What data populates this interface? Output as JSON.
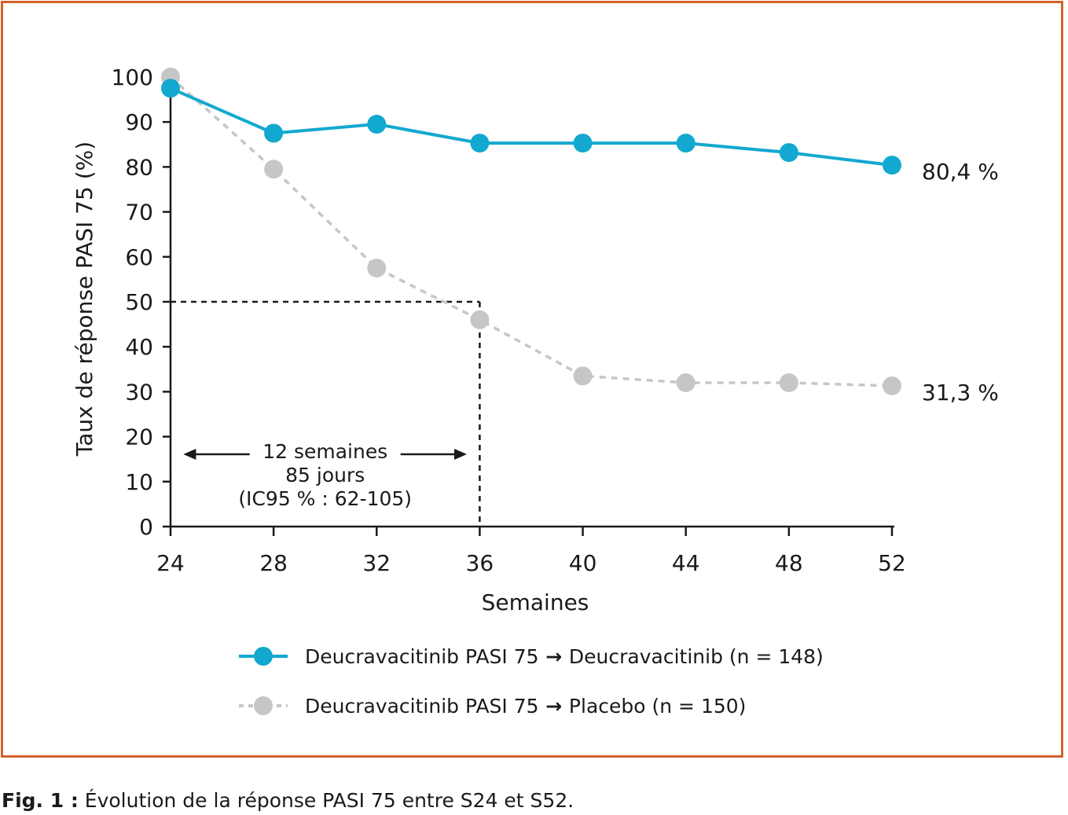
{
  "chart_data": {
    "type": "line",
    "xlabel": "Semaines",
    "ylabel": "Taux de réponse PASI 75 (%)",
    "x": [
      24,
      28,
      32,
      36,
      40,
      44,
      48,
      52
    ],
    "xticks": [
      "24",
      "28",
      "32",
      "36",
      "40",
      "44",
      "48",
      "52"
    ],
    "yticks": [
      "0",
      "10",
      "20",
      "30",
      "40",
      "50",
      "60",
      "70",
      "80",
      "90",
      "100"
    ],
    "xlim": [
      24,
      52
    ],
    "ylim": [
      0,
      100
    ],
    "grid": false,
    "legend_position": "bottom",
    "series": [
      {
        "name": "Deucravacitinib PASI 75 → Deucravacitinib (n = 148)",
        "legend_prefix": "Deucravacitinib PASI 75",
        "legend_suffix": "Deucravacitinib (n = 148)",
        "color": "#12a8cf",
        "line_style": "solid",
        "values": [
          97.5,
          87.5,
          89.5,
          85.3,
          85.3,
          85.3,
          83.2,
          80.4
        ],
        "end_label": "80,4 %"
      },
      {
        "name": "Deucravacitinib PASI 75 → Placebo (n = 150)",
        "legend_prefix": "Deucravacitinib PASI 75",
        "legend_suffix": "Placebo (n = 150)",
        "color": "#c6c6c6",
        "line_style": "dashed",
        "values": [
          100,
          79.5,
          57.5,
          46,
          33.5,
          32,
          32,
          31.3
        ],
        "end_label": "31,3 %"
      }
    ],
    "reference": {
      "x": 36,
      "y": 50
    },
    "annotation": {
      "x_from": 24.5,
      "x_to": 35.5,
      "lines": [
        "12 semaines",
        "85 jours",
        "(IC95 % : 62-105)"
      ]
    }
  },
  "caption": {
    "label": "Fig. 1 :",
    "text": " Évolution de la réponse PASI 75 entre S24 et S52."
  }
}
